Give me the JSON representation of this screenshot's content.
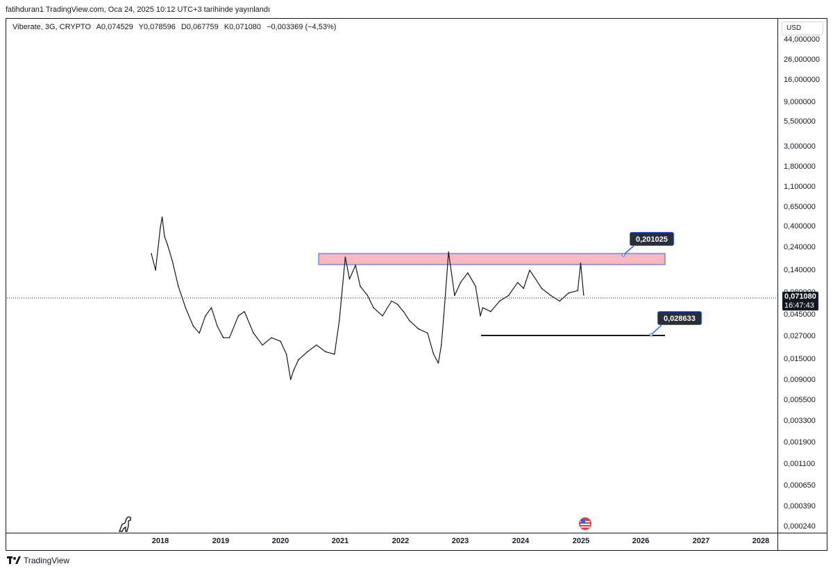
{
  "header": {
    "published_text": "fatihduran1 TradingView.com, Oca 24, 2025 10:12 UTC+3 tarihinde yayınlandı"
  },
  "legend": {
    "symbol": "Viberate, 3G, CRYPTO",
    "open": "A0,074529",
    "high": "Y0,078596",
    "low": "D0,067759",
    "close": "K0,071080",
    "change": "−0,003369 (−4,53%)"
  },
  "currency_button": "USD",
  "price_axis_labels": [
    "44,000000",
    "26,000000",
    "16,000000",
    "9,000000",
    "5,500000",
    "3,000000",
    "1,800000",
    "1,100000",
    "0,650000",
    "0,400000",
    "0,240000",
    "0,140000",
    "0,080000",
    "0,045000",
    "0,027000",
    "0,015000",
    "0,009000",
    "0,005500",
    "0,003300",
    "0,001900",
    "0,001100",
    "0,000650",
    "0,000390",
    "0,000240"
  ],
  "time_axis_labels": [
    "2018",
    "2019",
    "2020",
    "2021",
    "2022",
    "2023",
    "2024",
    "2025",
    "2026",
    "2027",
    "2028"
  ],
  "last_price": {
    "price": "0,071080",
    "countdown": "16:47:43"
  },
  "callouts": {
    "resistance": "0,201025",
    "support": "0,028633"
  },
  "footer": {
    "brand": "TradingView"
  },
  "colors": {
    "resistance_zone_fill": "#f7b8c0",
    "resistance_zone_border": "#2962ff",
    "callout_bg": "#2a2e39",
    "line": "#131722"
  },
  "chart_data": {
    "type": "line",
    "title": "Viberate, 3G, CRYPTO",
    "xlabel": "",
    "ylabel": "",
    "y_scale": "log",
    "ylim": [
      0.00024,
      44
    ],
    "xlim": [
      2017.65,
      2028.9
    ],
    "grid": false,
    "series": [
      {
        "name": "",
        "x": [
          2017.85,
          2017.92,
          2018.0,
          2018.03,
          2018.07,
          2018.12,
          2018.2,
          2018.3,
          2018.42,
          2018.55,
          2018.65,
          2018.75,
          2018.85,
          2018.95,
          2019.05,
          2019.15,
          2019.3,
          2019.4,
          2019.55,
          2019.7,
          2019.85,
          2020.0,
          2020.1,
          2020.17,
          2020.22,
          2020.3,
          2020.45,
          2020.6,
          2020.75,
          2020.9,
          2020.98,
          2021.08,
          2021.15,
          2021.25,
          2021.33,
          2021.45,
          2021.55,
          2021.7,
          2021.85,
          2021.95,
          2022.05,
          2022.15,
          2022.3,
          2022.45,
          2022.55,
          2022.63,
          2022.68,
          2022.72,
          2022.8,
          2022.9,
          2023.0,
          2023.12,
          2023.25,
          2023.33,
          2023.37,
          2023.5,
          2023.65,
          2023.8,
          2023.95,
          2024.05,
          2024.15,
          2024.25,
          2024.35,
          2024.5,
          2024.65,
          2024.8,
          2024.95,
          2025.0,
          2025.05
        ],
        "y": [
          0.22,
          0.14,
          0.45,
          0.6,
          0.35,
          0.28,
          0.18,
          0.09,
          0.05,
          0.03,
          0.025,
          0.04,
          0.05,
          0.03,
          0.022,
          0.022,
          0.04,
          0.045,
          0.025,
          0.018,
          0.022,
          0.02,
          0.014,
          0.007,
          0.009,
          0.012,
          0.015,
          0.018,
          0.015,
          0.014,
          0.035,
          0.2,
          0.11,
          0.16,
          0.09,
          0.07,
          0.05,
          0.04,
          0.06,
          0.055,
          0.045,
          0.035,
          0.028,
          0.025,
          0.014,
          0.011,
          0.018,
          0.04,
          0.23,
          0.07,
          0.1,
          0.13,
          0.09,
          0.04,
          0.05,
          0.045,
          0.06,
          0.07,
          0.1,
          0.085,
          0.14,
          0.11,
          0.085,
          0.07,
          0.06,
          0.075,
          0.08,
          0.17,
          0.071
        ]
      }
    ],
    "annotations": [
      {
        "type": "zone",
        "label": "0,201025",
        "y_low": 0.16,
        "y_high": 0.201,
        "x_start": 2020.65,
        "x_end": 2026.4
      },
      {
        "type": "hline",
        "label": "0,028633",
        "y": 0.028633,
        "x_start": 2023.35,
        "x_end": 2026.4
      }
    ],
    "last_value": 0.07108
  }
}
